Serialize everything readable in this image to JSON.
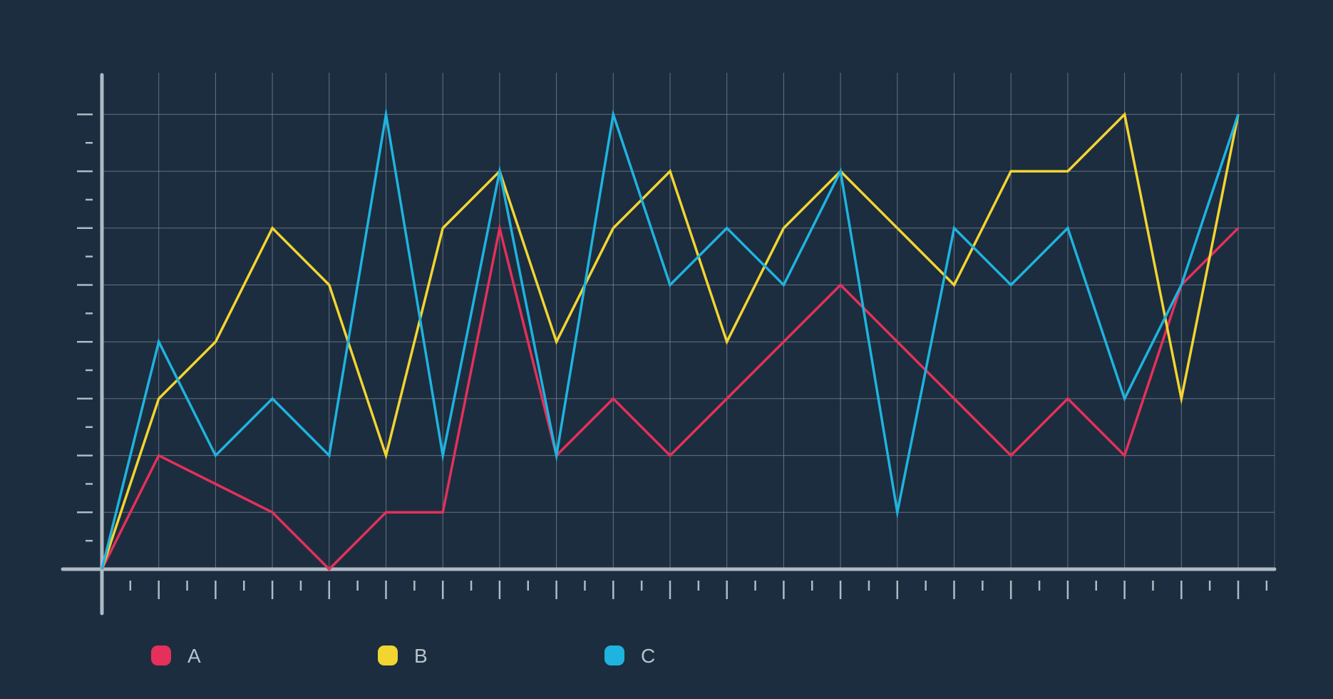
{
  "chart_data": {
    "type": "line",
    "title": "",
    "xlabel": "",
    "ylabel": "",
    "x": [
      0,
      1,
      2,
      3,
      4,
      5,
      6,
      7,
      8,
      9,
      10,
      11,
      12,
      13,
      14,
      15,
      16,
      17,
      18,
      19,
      20
    ],
    "ylim": [
      0,
      8
    ],
    "xlim": [
      0,
      20
    ],
    "grid": true,
    "legend": "bottom-left",
    "series": [
      {
        "name": "A",
        "color": "#e4305a",
        "values": [
          0,
          2,
          1.5,
          1,
          0,
          1,
          1,
          6,
          2,
          3,
          2,
          3,
          4,
          5,
          4,
          3,
          2,
          3,
          2,
          5,
          6
        ]
      },
      {
        "name": "B",
        "color": "#f2d530",
        "values": [
          0,
          3,
          4,
          6,
          5,
          2,
          6,
          7,
          4,
          6,
          7,
          4,
          6,
          7,
          6,
          5,
          7,
          7,
          8,
          3,
          8
        ]
      },
      {
        "name": "C",
        "color": "#1fb3df",
        "values": [
          0,
          4,
          2,
          3,
          2,
          8,
          2,
          7,
          2,
          8,
          5,
          6,
          5,
          7,
          1,
          6,
          5,
          6,
          3,
          5,
          8
        ]
      }
    ]
  },
  "colors": {
    "background": "#1c2d3f",
    "axis": "#aebac4",
    "grid": "#7b8a98"
  }
}
